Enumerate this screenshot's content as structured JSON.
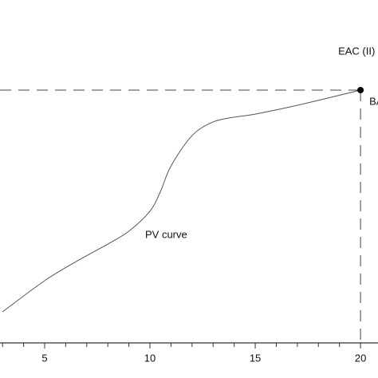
{
  "chart_data": {
    "type": "line",
    "x": [
      3,
      5,
      6.5,
      8,
      9,
      10,
      10.5,
      11,
      12,
      13,
      14,
      15,
      17,
      20
    ],
    "series": [
      {
        "name": "PV curve",
        "color": "#555555",
        "values": [
          12.3,
          24.6,
          32.2,
          39.1,
          44.2,
          52.1,
          59.9,
          70.0,
          82.0,
          87.4,
          89.3,
          90.5,
          94.0,
          100
        ]
      }
    ],
    "point": {
      "x": 20,
      "y": 100,
      "label": "EAC (II)",
      "side_label": "BAC"
    },
    "xlim": [
      2.88,
      20.83
    ],
    "ylim": [
      0,
      100
    ],
    "xticks": [
      5,
      10,
      15,
      20
    ],
    "xminor_ticks": [
      3,
      4,
      6,
      7,
      8,
      9,
      11,
      12,
      13,
      14,
      16,
      17,
      18,
      19
    ]
  }
}
